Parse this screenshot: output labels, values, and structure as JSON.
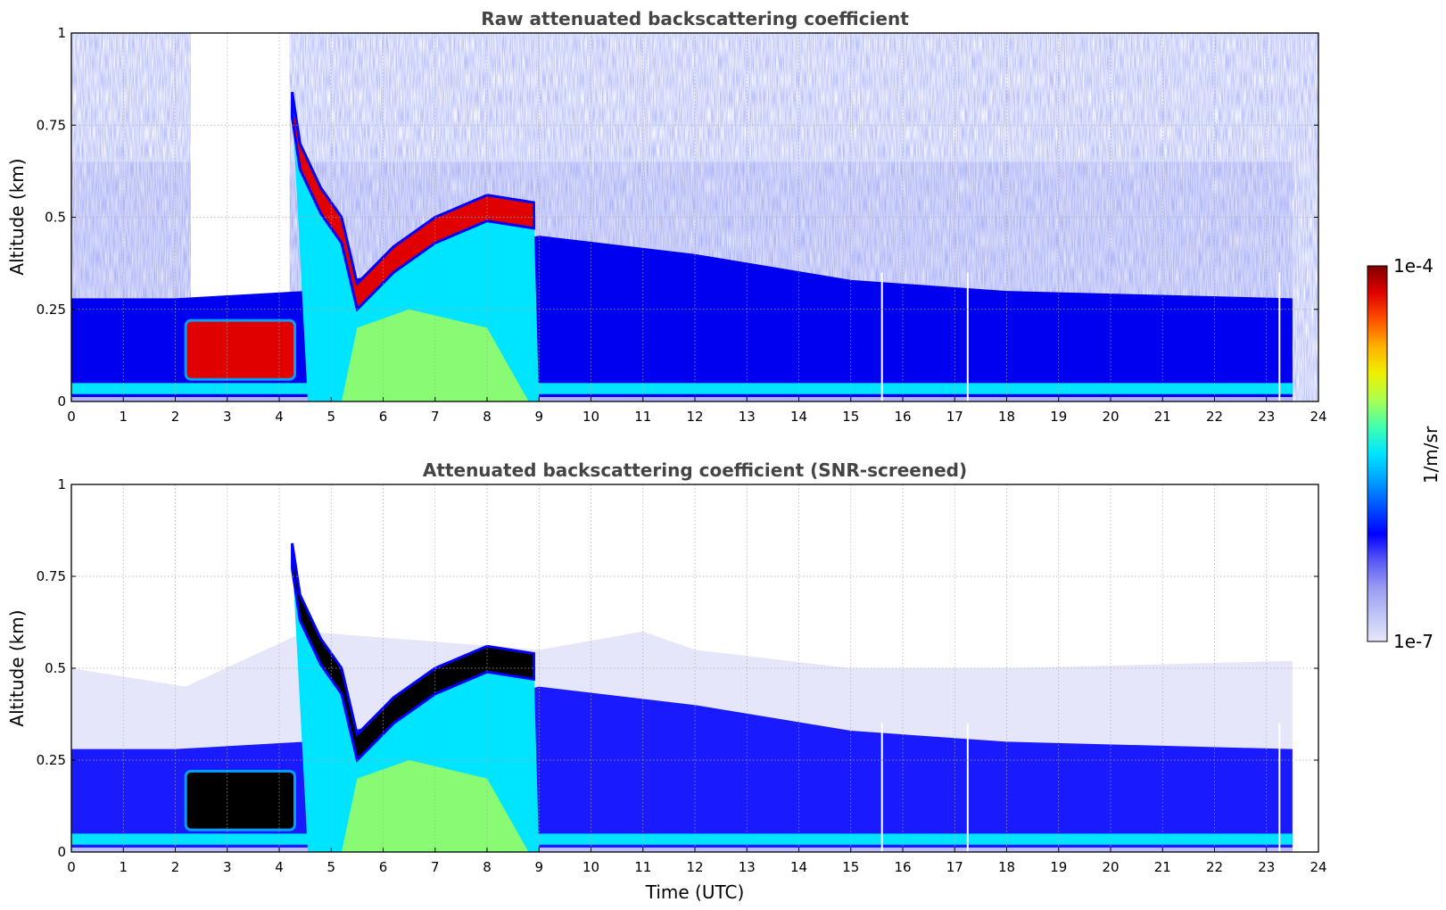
{
  "chart_data": [
    {
      "type": "heatmap",
      "title": "Raw attenuated backscattering coefficient",
      "xlabel": "",
      "ylabel": "Altitude (km)",
      "xlim": [
        0,
        24
      ],
      "ylim": [
        0,
        1
      ],
      "x_ticks": [
        "0",
        "1",
        "2",
        "3",
        "4",
        "5",
        "6",
        "7",
        "8",
        "9",
        "10",
        "11",
        "12",
        "13",
        "14",
        "15",
        "16",
        "17",
        "18",
        "19",
        "20",
        "21",
        "22",
        "23",
        "24"
      ],
      "y_ticks": [
        "0",
        "0.25",
        "0.5",
        "0.75",
        "1"
      ],
      "grid": true,
      "data_extent_hours": [
        0,
        23.5
      ],
      "colorbar": "shared",
      "features": {
        "boundary_layer_top_km": [
          [
            0,
            0.28
          ],
          [
            2,
            0.28
          ],
          [
            4.5,
            0.3
          ],
          [
            9,
            0.45
          ],
          [
            12,
            0.4
          ],
          [
            15,
            0.33
          ],
          [
            18,
            0.3
          ],
          [
            23.5,
            0.28
          ]
        ],
        "fog_layer": {
          "start_hour": 2.2,
          "end_hour": 4.3,
          "bottom_km": 0.06,
          "top_km": 0.22,
          "peak_km": 0.12
        },
        "cloud_layer_top_km": [
          [
            4.25,
            0.84
          ],
          [
            4.4,
            0.7
          ],
          [
            4.8,
            0.58
          ],
          [
            5.2,
            0.5
          ],
          [
            5.5,
            0.32
          ],
          [
            6.2,
            0.42
          ],
          [
            7,
            0.5
          ],
          [
            8,
            0.56
          ],
          [
            8.9,
            0.54
          ]
        ],
        "clear_gap_hours": [
          2.3,
          4.2
        ],
        "missing_profiles_hours": [
          15.6,
          17.25,
          23.25
        ]
      }
    },
    {
      "type": "heatmap",
      "title": "Attenuated backscattering coefficient (SNR-screened)",
      "xlabel": "Time (UTC)",
      "ylabel": "Altitude (km)",
      "xlim": [
        0,
        24
      ],
      "ylim": [
        0,
        1
      ],
      "x_ticks": [
        "0",
        "1",
        "2",
        "3",
        "4",
        "5",
        "6",
        "7",
        "8",
        "9",
        "10",
        "11",
        "12",
        "13",
        "14",
        "15",
        "16",
        "17",
        "18",
        "19",
        "20",
        "21",
        "22",
        "23",
        "24"
      ],
      "y_ticks": [
        "0",
        "0.25",
        "0.5",
        "0.75",
        "1"
      ],
      "grid": true,
      "data_extent_hours": [
        0,
        23.5
      ],
      "colorbar": "shared",
      "saturated_color": "#000000",
      "features": {
        "screened_top_km": [
          [
            0,
            0.5
          ],
          [
            2.2,
            0.45
          ],
          [
            4.5,
            0.6
          ],
          [
            9,
            0.55
          ],
          [
            11,
            0.6
          ],
          [
            12,
            0.55
          ],
          [
            15,
            0.5
          ],
          [
            18,
            0.5
          ],
          [
            23.5,
            0.52
          ]
        ],
        "missing_profiles_hours": [
          15.6,
          17.25,
          23.25
        ]
      }
    }
  ],
  "colorbar": {
    "label": "1/m/sr",
    "max_label": "1e-4",
    "min_label": "1e-7",
    "scale": "log",
    "range": [
      1e-07,
      0.0001
    ],
    "colors": [
      "#e6e6fa",
      "#c0c4f6",
      "#9a9cf3",
      "#5a5af5",
      "#0000ff",
      "#0050ff",
      "#00a0ff",
      "#00e5ff",
      "#40ffb0",
      "#aaff50",
      "#f0f000",
      "#ffb000",
      "#ff5000",
      "#e00000",
      "#800000"
    ]
  }
}
